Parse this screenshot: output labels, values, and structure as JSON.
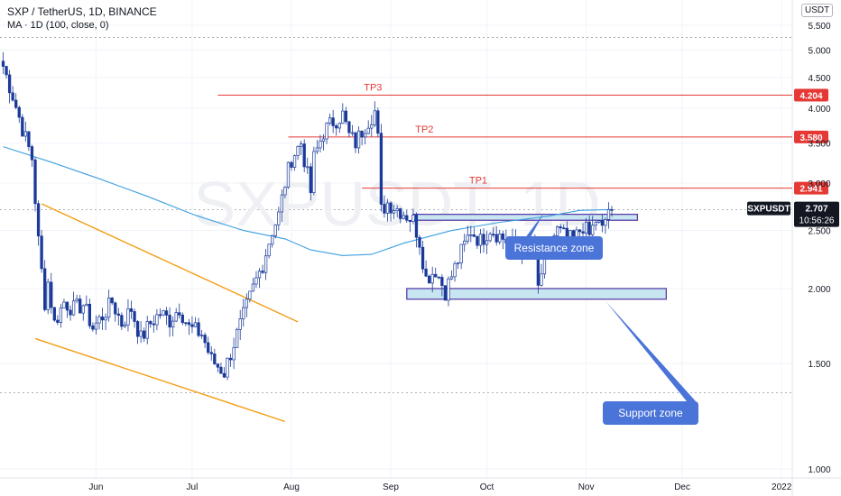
{
  "header": {
    "title": "SXP / TetherUS, 1D, BINANCE",
    "indicator": "MA · 1D (100, close, 0)",
    "currency": "USDT"
  },
  "watermark": "SXPUSDT, 1D",
  "price_tag": {
    "symbol": "SXPUSDT",
    "price": "2.707",
    "countdown": "10:56:26"
  },
  "colors": {
    "up": "#ffffff",
    "down": "#1a3a99",
    "candle_border": "#1a3a99",
    "ma": "#3ca0e0",
    "target_line": "#e53935",
    "wedge": "#f39c12",
    "zone_fill": "#c7e6f2",
    "zone_border": "#5b3fa8",
    "callout": "#4a74d8",
    "grid": "#f0f3fa"
  },
  "chart_data": {
    "type": "candlestick",
    "y_scale": "log",
    "ylim": [
      0.97,
      5.8
    ],
    "y_ticks": [
      1.0,
      1.5,
      2.0,
      2.5,
      3.0,
      3.5,
      4.0,
      4.5,
      5.0,
      5.5
    ],
    "y_tick_labels": [
      "1.000",
      "1.500",
      "2.000",
      "2.500",
      "3.000",
      "3.500",
      "4.000",
      "4.500",
      "5.000",
      "5.500"
    ],
    "x_ticks": [
      {
        "bar": 29,
        "label": "Jun"
      },
      {
        "bar": 59,
        "label": "Jul"
      },
      {
        "bar": 90,
        "label": "Aug"
      },
      {
        "bar": 121,
        "label": "Sep"
      },
      {
        "bar": 151,
        "label": "Oct"
      },
      {
        "bar": 182,
        "label": "Nov"
      },
      {
        "bar": 212,
        "label": "Dec"
      },
      {
        "bar": 243,
        "label": "2022"
      }
    ],
    "bars": 199,
    "anchor_points": [
      [
        0,
        4.7
      ],
      [
        3,
        4.2
      ],
      [
        6,
        3.7
      ],
      [
        9,
        3.3
      ],
      [
        11,
        2.4
      ],
      [
        13,
        1.9
      ],
      [
        14,
        2.05
      ],
      [
        16,
        1.75
      ],
      [
        19,
        1.9
      ],
      [
        22,
        1.85
      ],
      [
        25,
        1.88
      ],
      [
        28,
        1.72
      ],
      [
        31,
        1.8
      ],
      [
        34,
        1.9
      ],
      [
        37,
        1.75
      ],
      [
        40,
        1.85
      ],
      [
        43,
        1.65
      ],
      [
        46,
        1.75
      ],
      [
        49,
        1.82
      ],
      [
        52,
        1.77
      ],
      [
        55,
        1.86
      ],
      [
        58,
        1.72
      ],
      [
        62,
        1.68
      ],
      [
        65,
        1.52
      ],
      [
        69,
        1.45
      ],
      [
        72,
        1.62
      ],
      [
        75,
        1.8
      ],
      [
        78,
        2.0
      ],
      [
        81,
        2.2
      ],
      [
        84,
        2.5
      ],
      [
        86,
        2.65
      ],
      [
        88,
        3.0
      ],
      [
        90,
        3.3
      ],
      [
        93,
        3.5
      ],
      [
        96,
        2.9
      ],
      [
        97,
        3.3
      ],
      [
        100,
        3.65
      ],
      [
        103,
        3.8
      ],
      [
        106,
        3.9
      ],
      [
        108,
        3.6
      ],
      [
        110,
        3.5
      ],
      [
        113,
        3.75
      ],
      [
        116,
        3.95
      ],
      [
        117,
        3.55
      ],
      [
        118,
        2.7
      ],
      [
        120,
        2.78
      ],
      [
        124,
        2.7
      ],
      [
        128,
        2.6
      ],
      [
        130,
        2.4
      ],
      [
        132,
        2.08
      ],
      [
        135,
        2.15
      ],
      [
        138,
        1.98
      ],
      [
        140,
        2.1
      ],
      [
        143,
        2.3
      ],
      [
        146,
        2.5
      ],
      [
        149,
        2.4
      ],
      [
        152,
        2.52
      ],
      [
        155,
        2.45
      ],
      [
        158,
        2.38
      ],
      [
        161,
        2.35
      ],
      [
        164,
        2.3
      ],
      [
        166,
        2.33
      ],
      [
        167,
        2.0
      ],
      [
        169,
        2.25
      ],
      [
        171,
        2.4
      ],
      [
        173,
        2.5
      ],
      [
        175,
        2.45
      ],
      [
        178,
        2.4
      ],
      [
        181,
        2.55
      ],
      [
        183,
        2.45
      ],
      [
        185,
        2.6
      ],
      [
        187,
        2.5
      ],
      [
        189,
        2.72
      ],
      [
        190,
        2.707
      ]
    ],
    "ma_points": [
      [
        0,
        3.45
      ],
      [
        15,
        3.25
      ],
      [
        30,
        3.05
      ],
      [
        45,
        2.85
      ],
      [
        60,
        2.65
      ],
      [
        75,
        2.5
      ],
      [
        88,
        2.42
      ],
      [
        96,
        2.32
      ],
      [
        106,
        2.27
      ],
      [
        115,
        2.28
      ],
      [
        125,
        2.38
      ],
      [
        140,
        2.5
      ],
      [
        155,
        2.58
      ],
      [
        170,
        2.64
      ],
      [
        180,
        2.7
      ],
      [
        190,
        2.71
      ]
    ],
    "targets": [
      {
        "label": "TP3",
        "value": 4.204,
        "value_label": "4.204",
        "from_bar": 67
      },
      {
        "label": "TP2",
        "value": 3.58,
        "value_label": "3.580",
        "from_bar": 89
      },
      {
        "label": "TP1",
        "value": 2.941,
        "value_label": "2.941",
        "from_bar": 112
      }
    ],
    "resistance_zone": {
      "label": "Resistance zone",
      "bar_from": 128,
      "bar_to": 198,
      "low": 2.6,
      "high": 2.66
    },
    "support_zone": {
      "label": "Support zone",
      "bar_from": 126,
      "bar_to": 207,
      "low": 1.92,
      "high": 2.0
    },
    "wedge_upper": [
      [
        12,
        2.77
      ],
      [
        92,
        1.76
      ]
    ],
    "wedge_lower": [
      [
        10,
        1.65
      ],
      [
        88,
        1.2
      ]
    ],
    "dashed_levels": [
      2.707,
      1.34,
      5.25
    ]
  }
}
